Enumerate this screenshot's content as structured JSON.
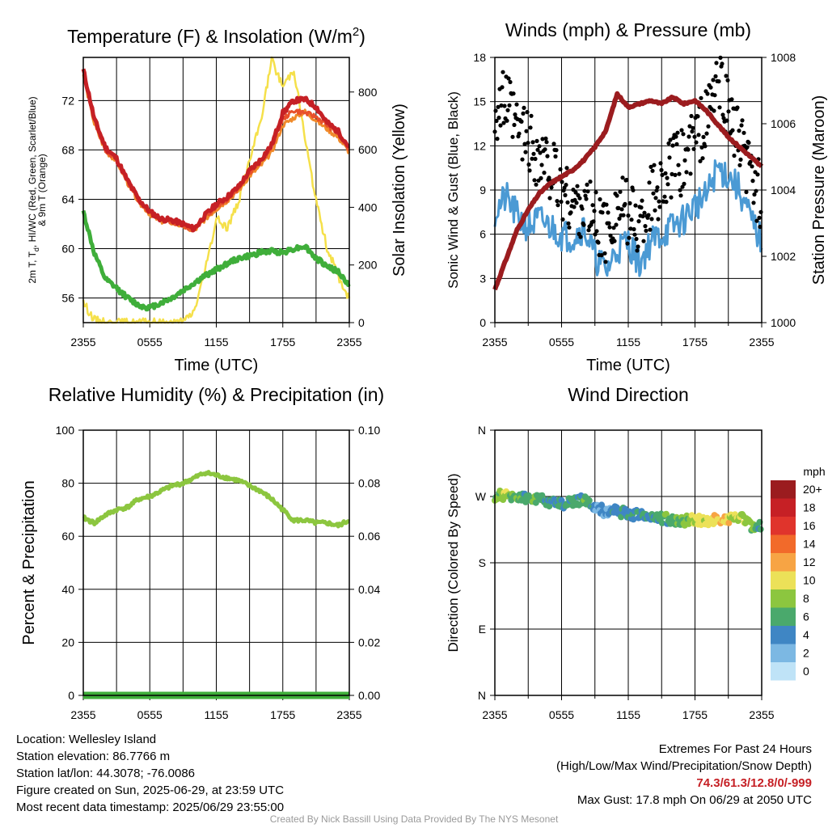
{
  "panels": [
    {
      "id": "temp",
      "title": "Temperature (F) & Insolation (W/m²)",
      "title_main": "Temperature (F) & Insolation (W/m",
      "title_sup": "2",
      "title_end": ")",
      "ylabel_left_lines": [
        "2m T, T",
        "d",
        ", HI/WC (Red, Green, Scarlet/Blue)",
        "& 9m T (Orange)"
      ],
      "ylabel_right": "Solar Insolation (Yellow)",
      "xlabel": "Time (UTC)",
      "x_ticks": [
        "2355",
        "0555",
        "1155",
        "1755",
        "2355"
      ],
      "y_left_ticks": [
        "56",
        "60",
        "64",
        "68",
        "72"
      ],
      "y_right_ticks": [
        "0",
        "200",
        "400",
        "600",
        "800"
      ]
    },
    {
      "id": "wind",
      "title": "Winds (mph) & Pressure (mb)",
      "ylabel_left": "Sonic Wind & Gust (Blue, Black)",
      "ylabel_right": "Station Pressure (Maroon)",
      "xlabel": "Time (UTC)",
      "x_ticks": [
        "2355",
        "0555",
        "1155",
        "1755",
        "2355"
      ],
      "y_left_ticks": [
        "0",
        "3",
        "6",
        "9",
        "12",
        "15",
        "18"
      ],
      "y_right_ticks": [
        "1000",
        "1002",
        "1004",
        "1006",
        "1008"
      ]
    },
    {
      "id": "rh",
      "title": "Relative Humidity (%) & Precipitation (in)",
      "ylabel_left": "Percent & Precipitation",
      "x_ticks": [
        "2355",
        "0555",
        "1155",
        "1755",
        "2355"
      ],
      "y_left_ticks": [
        "0",
        "20",
        "40",
        "60",
        "80",
        "100"
      ],
      "y_right_ticks": [
        "0.00",
        "0.02",
        "0.04",
        "0.06",
        "0.08",
        "0.10"
      ]
    },
    {
      "id": "dir",
      "title": "Wind Direction",
      "ylabel_left": "Direction (Colored By Speed)",
      "x_ticks": [
        "2355",
        "0555",
        "1155",
        "1755",
        "2355"
      ],
      "y_left_ticks": [
        "N",
        "E",
        "S",
        "W",
        "N"
      ],
      "legend_title": "mph",
      "legend_labels": [
        "20+",
        "18",
        "16",
        "14",
        "12",
        "10",
        "8",
        "6",
        "4",
        "2",
        "0"
      ]
    }
  ],
  "colors": {
    "air_temp": "#c62025",
    "dewpoint": "#3fae3a",
    "heat_index": "#e8502b",
    "temp_9m": "#f08a2a",
    "insolation": "#f5e04a",
    "wind": "#4b9ad4",
    "gust": "#000000",
    "pressure": "#9b1c1f",
    "rh": "#8cc63f",
    "precip": "#3fae3a",
    "legend": [
      "#9b1c1f",
      "#c62025",
      "#e0342c",
      "#f26a2a",
      "#f7a444",
      "#ece158",
      "#8cc63f",
      "#4aa96c",
      "#3f86c4",
      "#7cb8e3",
      "#bfe3f7"
    ]
  },
  "chart_data": [
    {
      "type": "line",
      "title": "Temperature (F) & Insolation (W/m2)",
      "xlabel": "Time (UTC)",
      "ylabel": "2m T, Td, HI/WC (Red, Green, Scarlet/Blue) & 9m T (Orange)",
      "ylabel_right": "Solar Insolation (Yellow)",
      "x": [
        0,
        1,
        2,
        3,
        4,
        5,
        6,
        7,
        8,
        9,
        10,
        11,
        12,
        13,
        14,
        15,
        16,
        17,
        18,
        19,
        20,
        21,
        22,
        23,
        24
      ],
      "ylim": [
        54,
        75.5
      ],
      "ylim_right": [
        0,
        920
      ],
      "grid": true,
      "series": [
        {
          "name": "2m T",
          "axis": "left",
          "values": [
            74.5,
            70.5,
            68.2,
            67.3,
            65.5,
            64.0,
            63.0,
            62.4,
            62.3,
            62.0,
            61.6,
            62.7,
            63.6,
            64.2,
            65.0,
            66.3,
            67.2,
            68.4,
            71.0,
            72.0,
            72.1,
            71.5,
            70.2,
            69.5,
            68.2
          ]
        },
        {
          "name": "Td",
          "axis": "left",
          "values": [
            63.0,
            59.6,
            57.5,
            56.8,
            56.0,
            55.4,
            55.2,
            55.6,
            56.0,
            56.6,
            57.2,
            57.8,
            58.3,
            58.8,
            59.2,
            59.4,
            59.7,
            59.8,
            59.7,
            60.0,
            60.2,
            59.2,
            58.6,
            58.1,
            57.0
          ]
        },
        {
          "name": "HI/WC",
          "axis": "left",
          "values": [
            74.3,
            70.3,
            68.0,
            67.2,
            65.4,
            63.9,
            62.9,
            62.3,
            62.2,
            61.9,
            61.5,
            62.6,
            63.4,
            64.0,
            64.9,
            66.2,
            67.0,
            68.2,
            70.5,
            71.2,
            71.0,
            70.7,
            70.0,
            69.3,
            68.0
          ]
        },
        {
          "name": "9m T",
          "axis": "left",
          "values": [
            74.0,
            70.1,
            67.9,
            67.1,
            65.3,
            63.8,
            62.8,
            62.2,
            62.1,
            61.8,
            61.4,
            62.4,
            63.2,
            63.9,
            64.7,
            65.9,
            66.7,
            67.8,
            70.0,
            70.6,
            71.1,
            70.4,
            69.7,
            69.0,
            67.8
          ]
        },
        {
          "name": "Solar Insolation",
          "axis": "right",
          "values": [
            70,
            10,
            0,
            0,
            0,
            0,
            0,
            0,
            0,
            0,
            40,
            180,
            360,
            330,
            420,
            560,
            700,
            910,
            820,
            880,
            640,
            420,
            260,
            160,
            80
          ]
        }
      ]
    },
    {
      "type": "line",
      "title": "Winds (mph) & Pressure (mb)",
      "xlabel": "Time (UTC)",
      "ylabel": "Sonic Wind & Gust (Blue, Black)",
      "ylabel_right": "Station Pressure (Maroon)",
      "x": [
        0,
        1,
        2,
        3,
        4,
        5,
        6,
        7,
        8,
        9,
        10,
        11,
        12,
        13,
        14,
        15,
        16,
        17,
        18,
        19,
        20,
        21,
        22,
        23,
        24
      ],
      "ylim": [
        0,
        18
      ],
      "ylim_right": [
        1000,
        1008
      ],
      "grid": true,
      "series": [
        {
          "name": "Sonic Wind",
          "axis": "left",
          "values": [
            7.5,
            8.5,
            7.2,
            6.5,
            7.0,
            6.5,
            6.0,
            5.8,
            6.5,
            4.5,
            3.5,
            5.0,
            5.5,
            4.0,
            5.5,
            6.0,
            6.5,
            7.0,
            8.0,
            8.5,
            10.5,
            10.0,
            9.0,
            7.0,
            5.5
          ]
        },
        {
          "name": "Gust",
          "axis": "left",
          "values": [
            14.5,
            15.0,
            13.0,
            12.5,
            11.0,
            10.5,
            9.0,
            8.0,
            8.0,
            7.0,
            6.0,
            8.0,
            7.5,
            6.5,
            8.5,
            9.5,
            10.5,
            11.0,
            12.5,
            13.5,
            16.5,
            14.5,
            12.0,
            10.0,
            8.5
          ]
        },
        {
          "name": "Station Pressure",
          "axis": "right",
          "values": [
            1001.0,
            1001.9,
            1002.8,
            1003.4,
            1003.9,
            1004.2,
            1004.4,
            1004.6,
            1004.9,
            1005.3,
            1005.8,
            1006.9,
            1006.5,
            1006.6,
            1006.7,
            1006.6,
            1006.8,
            1006.6,
            1006.7,
            1006.4,
            1006.0,
            1005.6,
            1005.3,
            1005.0,
            1004.7
          ]
        }
      ]
    },
    {
      "type": "line",
      "title": "Relative Humidity (%) & Precipitation (in)",
      "ylabel": "Percent & Precipitation",
      "x": [
        0,
        1,
        2,
        3,
        4,
        5,
        6,
        7,
        8,
        9,
        10,
        11,
        12,
        13,
        14,
        15,
        16,
        17,
        18,
        19,
        20,
        21,
        22,
        23,
        24
      ],
      "ylim": [
        0,
        100
      ],
      "ylim_right": [
        0,
        0.1
      ],
      "grid": true,
      "series": [
        {
          "name": "Relative Humidity",
          "axis": "left",
          "values": [
            67,
            65,
            68,
            70,
            71,
            74,
            75,
            77,
            79,
            80,
            82,
            84,
            83,
            82,
            81,
            79,
            77,
            74,
            70,
            66,
            66,
            65,
            65,
            64,
            66
          ]
        },
        {
          "name": "Precipitation",
          "axis": "right",
          "values": [
            0,
            0,
            0,
            0,
            0,
            0,
            0,
            0,
            0,
            0,
            0,
            0,
            0,
            0,
            0,
            0,
            0,
            0,
            0,
            0,
            0,
            0,
            0,
            0,
            0
          ]
        }
      ]
    },
    {
      "type": "scatter",
      "title": "Wind Direction",
      "ylabel": "Direction (Colored By Speed)",
      "x": [
        0,
        1,
        2,
        3,
        4,
        5,
        6,
        7,
        8,
        9,
        10,
        11,
        12,
        13,
        14,
        15,
        16,
        17,
        18,
        19,
        20,
        21,
        22,
        23,
        24
      ],
      "ylim": [
        0,
        360
      ],
      "grid": true,
      "legend_title": "mph",
      "series": [
        {
          "name": "Direction",
          "values": [
            270,
            272,
            271,
            268,
            266,
            262,
            260,
            262,
            265,
            258,
            248,
            250,
            246,
            245,
            243,
            240,
            238,
            236,
            240,
            235,
            242,
            238,
            244,
            230,
            230
          ],
          "speed": [
            7,
            8,
            7,
            6,
            6,
            5,
            5,
            6,
            6,
            4,
            3,
            5,
            5,
            4,
            5,
            6,
            6,
            7,
            9,
            10,
            11,
            10,
            9,
            7,
            5
          ]
        }
      ]
    }
  ]
}
